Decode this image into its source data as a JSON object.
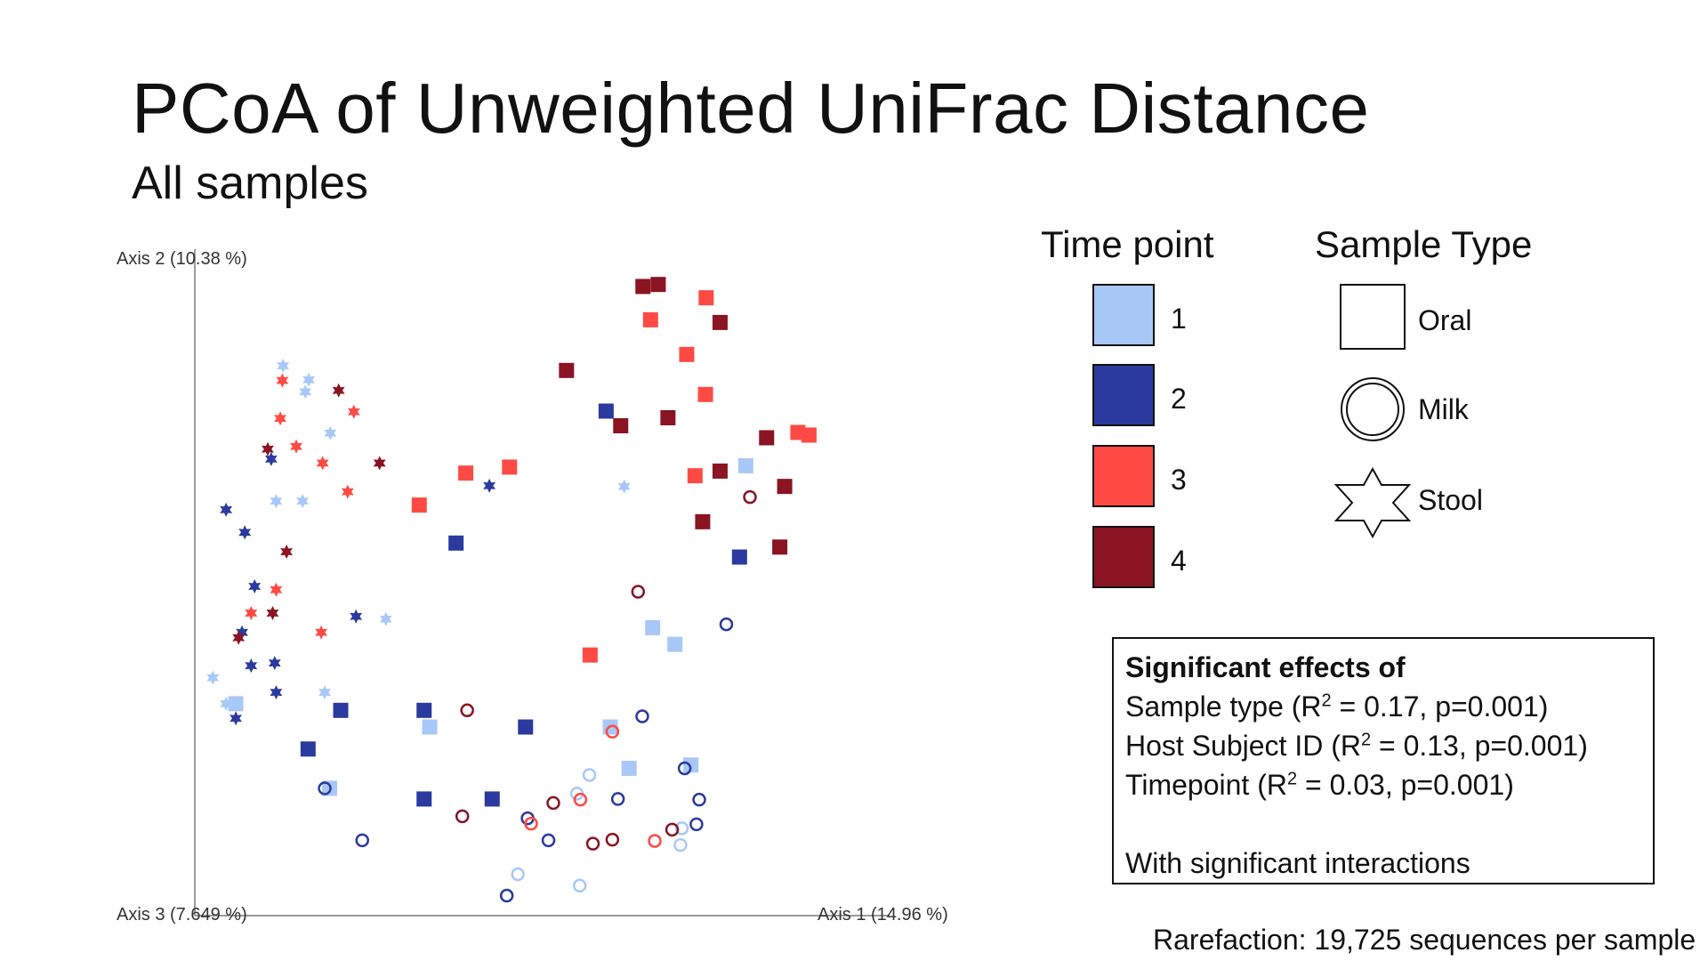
{
  "slide": {
    "title": "PCoA of Unweighted UniFrac Distance",
    "subtitle": "All samples",
    "footnote": "Rarefaction: 19,725 sequences per sample"
  },
  "legend": {
    "timepoint_title": "Time point",
    "timepoints": [
      {
        "label": "1",
        "color": "#a8c8f8"
      },
      {
        "label": "2",
        "color": "#2a3a9e"
      },
      {
        "label": "3",
        "color": "#ff4a44"
      },
      {
        "label": "4",
        "color": "#8a1422"
      }
    ],
    "sampletype_title": "Sample Type",
    "sampletypes": [
      {
        "label": "Oral",
        "icon": "square-icon"
      },
      {
        "label": "Milk",
        "icon": "circle-icon"
      },
      {
        "label": "Stool",
        "icon": "star-icon"
      }
    ]
  },
  "stats": {
    "heading": "Significant effects of",
    "lines": [
      {
        "pre": "Sample type (R",
        "sup": "2",
        "post": " = 0.17, p=0.001)"
      },
      {
        "pre": "Host Subject ID (R",
        "sup": "2",
        "post": " = 0.13, p=0.001)"
      },
      {
        "pre": "Timepoint (R",
        "sup": "2",
        "post": " = 0.03, p=0.001)"
      }
    ],
    "footer": "With significant interactions"
  },
  "chart_data": {
    "type": "scatter",
    "title": "",
    "axis_x_label": "Axis 1 (14.96 %)",
    "axis_y_label": "Axis 2 (10.38 %)",
    "axis_z_label": "Axis 3 (7.649 %)",
    "x_range": [
      0,
      100
    ],
    "y_range": [
      0,
      100
    ],
    "note": "Axes carry no tick values; coordinates are relative positions within the plotted region (0-100).",
    "colors": {
      "1": "#a8c8f8",
      "2": "#2a3a9e",
      "3": "#ff4a44",
      "4": "#8a1422"
    },
    "points": [
      {
        "x": 64.5,
        "y": 94.4,
        "tp": 4,
        "type": "Oral"
      },
      {
        "x": 66.7,
        "y": 94.7,
        "tp": 4,
        "type": "Oral"
      },
      {
        "x": 73.6,
        "y": 92.7,
        "tp": 3,
        "type": "Oral"
      },
      {
        "x": 65.6,
        "y": 89.4,
        "tp": 3,
        "type": "Oral"
      },
      {
        "x": 75.6,
        "y": 89.0,
        "tp": 4,
        "type": "Oral"
      },
      {
        "x": 70.8,
        "y": 84.2,
        "tp": 3,
        "type": "Oral"
      },
      {
        "x": 53.5,
        "y": 81.8,
        "tp": 4,
        "type": "Oral"
      },
      {
        "x": 73.5,
        "y": 78.2,
        "tp": 3,
        "type": "Oral"
      },
      {
        "x": 59.2,
        "y": 75.7,
        "tp": 2,
        "type": "Oral"
      },
      {
        "x": 68.1,
        "y": 74.7,
        "tp": 4,
        "type": "Oral"
      },
      {
        "x": 61.3,
        "y": 73.5,
        "tp": 4,
        "type": "Oral"
      },
      {
        "x": 82.3,
        "y": 71.7,
        "tp": 4,
        "type": "Oral"
      },
      {
        "x": 86.8,
        "y": 72.5,
        "tp": 3,
        "type": "Oral"
      },
      {
        "x": 88.4,
        "y": 72.1,
        "tp": 3,
        "type": "Oral"
      },
      {
        "x": 79.3,
        "y": 67.5,
        "tp": 1,
        "type": "Oral"
      },
      {
        "x": 75.6,
        "y": 66.7,
        "tp": 4,
        "type": "Oral"
      },
      {
        "x": 72.0,
        "y": 66.0,
        "tp": 3,
        "type": "Oral"
      },
      {
        "x": 84.9,
        "y": 64.4,
        "tp": 4,
        "type": "Oral"
      },
      {
        "x": 39.0,
        "y": 66.4,
        "tp": 3,
        "type": "Oral"
      },
      {
        "x": 45.3,
        "y": 67.3,
        "tp": 3,
        "type": "Oral"
      },
      {
        "x": 32.3,
        "y": 61.6,
        "tp": 3,
        "type": "Oral"
      },
      {
        "x": 73.1,
        "y": 59.1,
        "tp": 4,
        "type": "Oral"
      },
      {
        "x": 37.6,
        "y": 55.9,
        "tp": 2,
        "type": "Oral"
      },
      {
        "x": 84.2,
        "y": 55.3,
        "tp": 4,
        "type": "Oral"
      },
      {
        "x": 78.4,
        "y": 53.8,
        "tp": 2,
        "type": "Oral"
      },
      {
        "x": 65.9,
        "y": 43.2,
        "tp": 1,
        "type": "Oral"
      },
      {
        "x": 69.1,
        "y": 40.7,
        "tp": 1,
        "type": "Oral"
      },
      {
        "x": 56.9,
        "y": 39.1,
        "tp": 3,
        "type": "Oral"
      },
      {
        "x": 5.9,
        "y": 31.8,
        "tp": 1,
        "type": "Oral"
      },
      {
        "x": 21.0,
        "y": 30.8,
        "tp": 2,
        "type": "Oral"
      },
      {
        "x": 33.0,
        "y": 30.8,
        "tp": 2,
        "type": "Oral"
      },
      {
        "x": 33.8,
        "y": 28.3,
        "tp": 1,
        "type": "Oral"
      },
      {
        "x": 47.6,
        "y": 28.3,
        "tp": 2,
        "type": "Oral"
      },
      {
        "x": 59.8,
        "y": 28.3,
        "tp": 1,
        "type": "Oral"
      },
      {
        "x": 16.3,
        "y": 25.0,
        "tp": 2,
        "type": "Oral"
      },
      {
        "x": 71.4,
        "y": 22.6,
        "tp": 1,
        "type": "Oral"
      },
      {
        "x": 62.5,
        "y": 22.1,
        "tp": 1,
        "type": "Oral"
      },
      {
        "x": 19.4,
        "y": 19.1,
        "tp": 1,
        "type": "Oral"
      },
      {
        "x": 33.0,
        "y": 17.5,
        "tp": 2,
        "type": "Oral"
      },
      {
        "x": 42.8,
        "y": 17.5,
        "tp": 2,
        "type": "Oral"
      },
      {
        "x": 79.9,
        "y": 62.8,
        "tp": 4,
        "type": "Milk"
      },
      {
        "x": 63.8,
        "y": 48.6,
        "tp": 4,
        "type": "Milk"
      },
      {
        "x": 76.5,
        "y": 43.7,
        "tp": 2,
        "type": "Milk"
      },
      {
        "x": 39.2,
        "y": 30.8,
        "tp": 4,
        "type": "Milk"
      },
      {
        "x": 64.4,
        "y": 29.9,
        "tp": 2,
        "type": "Milk"
      },
      {
        "x": 60.1,
        "y": 27.6,
        "tp": 3,
        "type": "Milk"
      },
      {
        "x": 70.5,
        "y": 22.1,
        "tp": 2,
        "type": "Milk"
      },
      {
        "x": 18.7,
        "y": 19.1,
        "tp": 2,
        "type": "Milk"
      },
      {
        "x": 56.8,
        "y": 21.1,
        "tp": 1,
        "type": "Milk"
      },
      {
        "x": 55.0,
        "y": 18.3,
        "tp": 1,
        "type": "Milk"
      },
      {
        "x": 55.5,
        "y": 17.4,
        "tp": 3,
        "type": "Milk"
      },
      {
        "x": 60.9,
        "y": 17.5,
        "tp": 2,
        "type": "Milk"
      },
      {
        "x": 72.6,
        "y": 17.4,
        "tp": 2,
        "type": "Milk"
      },
      {
        "x": 51.6,
        "y": 16.9,
        "tp": 4,
        "type": "Milk"
      },
      {
        "x": 38.5,
        "y": 14.9,
        "tp": 4,
        "type": "Milk"
      },
      {
        "x": 47.9,
        "y": 14.6,
        "tp": 2,
        "type": "Milk"
      },
      {
        "x": 48.4,
        "y": 13.8,
        "tp": 3,
        "type": "Milk"
      },
      {
        "x": 72.2,
        "y": 13.7,
        "tp": 2,
        "type": "Milk"
      },
      {
        "x": 70.1,
        "y": 13.1,
        "tp": 1,
        "type": "Milk"
      },
      {
        "x": 68.7,
        "y": 12.9,
        "tp": 4,
        "type": "Milk"
      },
      {
        "x": 24.1,
        "y": 11.3,
        "tp": 2,
        "type": "Milk"
      },
      {
        "x": 50.9,
        "y": 11.3,
        "tp": 2,
        "type": "Milk"
      },
      {
        "x": 60.1,
        "y": 11.4,
        "tp": 4,
        "type": "Milk"
      },
      {
        "x": 57.3,
        "y": 10.8,
        "tp": 4,
        "type": "Milk"
      },
      {
        "x": 66.2,
        "y": 11.2,
        "tp": 3,
        "type": "Milk"
      },
      {
        "x": 69.9,
        "y": 10.6,
        "tp": 1,
        "type": "Milk"
      },
      {
        "x": 46.5,
        "y": 6.2,
        "tp": 1,
        "type": "Milk"
      },
      {
        "x": 55.4,
        "y": 4.5,
        "tp": 1,
        "type": "Milk"
      },
      {
        "x": 44.9,
        "y": 3.0,
        "tp": 2,
        "type": "Milk"
      },
      {
        "x": 12.7,
        "y": 82.5,
        "tp": 1,
        "type": "Stool"
      },
      {
        "x": 12.6,
        "y": 80.3,
        "tp": 3,
        "type": "Stool"
      },
      {
        "x": 16.4,
        "y": 80.4,
        "tp": 1,
        "type": "Stool"
      },
      {
        "x": 15.9,
        "y": 78.6,
        "tp": 1,
        "type": "Stool"
      },
      {
        "x": 20.7,
        "y": 78.8,
        "tp": 4,
        "type": "Stool"
      },
      {
        "x": 22.9,
        "y": 75.6,
        "tp": 3,
        "type": "Stool"
      },
      {
        "x": 12.3,
        "y": 74.6,
        "tp": 3,
        "type": "Stool"
      },
      {
        "x": 19.5,
        "y": 72.4,
        "tp": 1,
        "type": "Stool"
      },
      {
        "x": 10.5,
        "y": 70.0,
        "tp": 4,
        "type": "Stool"
      },
      {
        "x": 14.6,
        "y": 70.4,
        "tp": 3,
        "type": "Stool"
      },
      {
        "x": 11.0,
        "y": 68.5,
        "tp": 2,
        "type": "Stool"
      },
      {
        "x": 18.4,
        "y": 67.9,
        "tp": 3,
        "type": "Stool"
      },
      {
        "x": 26.6,
        "y": 67.9,
        "tp": 4,
        "type": "Stool"
      },
      {
        "x": 11.7,
        "y": 62.2,
        "tp": 1,
        "type": "Stool"
      },
      {
        "x": 15.5,
        "y": 62.2,
        "tp": 1,
        "type": "Stool"
      },
      {
        "x": 22.0,
        "y": 63.6,
        "tp": 3,
        "type": "Stool"
      },
      {
        "x": 42.4,
        "y": 64.5,
        "tp": 2,
        "type": "Stool"
      },
      {
        "x": 61.8,
        "y": 64.4,
        "tp": 1,
        "type": "Stool"
      },
      {
        "x": 4.5,
        "y": 60.9,
        "tp": 2,
        "type": "Stool"
      },
      {
        "x": 7.2,
        "y": 57.5,
        "tp": 2,
        "type": "Stool"
      },
      {
        "x": 13.2,
        "y": 54.6,
        "tp": 4,
        "type": "Stool"
      },
      {
        "x": 8.6,
        "y": 49.4,
        "tp": 2,
        "type": "Stool"
      },
      {
        "x": 11.7,
        "y": 48.9,
        "tp": 3,
        "type": "Stool"
      },
      {
        "x": 8.1,
        "y": 45.4,
        "tp": 3,
        "type": "Stool"
      },
      {
        "x": 11.2,
        "y": 45.4,
        "tp": 4,
        "type": "Stool"
      },
      {
        "x": 6.8,
        "y": 42.5,
        "tp": 2,
        "type": "Stool"
      },
      {
        "x": 6.3,
        "y": 41.7,
        "tp": 4,
        "type": "Stool"
      },
      {
        "x": 18.2,
        "y": 42.5,
        "tp": 3,
        "type": "Stool"
      },
      {
        "x": 23.2,
        "y": 44.9,
        "tp": 2,
        "type": "Stool"
      },
      {
        "x": 27.5,
        "y": 44.5,
        "tp": 1,
        "type": "Stool"
      },
      {
        "x": 8.1,
        "y": 37.5,
        "tp": 2,
        "type": "Stool"
      },
      {
        "x": 11.5,
        "y": 37.9,
        "tp": 2,
        "type": "Stool"
      },
      {
        "x": 2.6,
        "y": 35.7,
        "tp": 1,
        "type": "Stool"
      },
      {
        "x": 18.7,
        "y": 33.5,
        "tp": 1,
        "type": "Stool"
      },
      {
        "x": 11.7,
        "y": 33.5,
        "tp": 2,
        "type": "Stool"
      },
      {
        "x": 4.5,
        "y": 31.8,
        "tp": 1,
        "type": "Stool"
      },
      {
        "x": 5.9,
        "y": 29.6,
        "tp": 2,
        "type": "Stool"
      }
    ]
  }
}
